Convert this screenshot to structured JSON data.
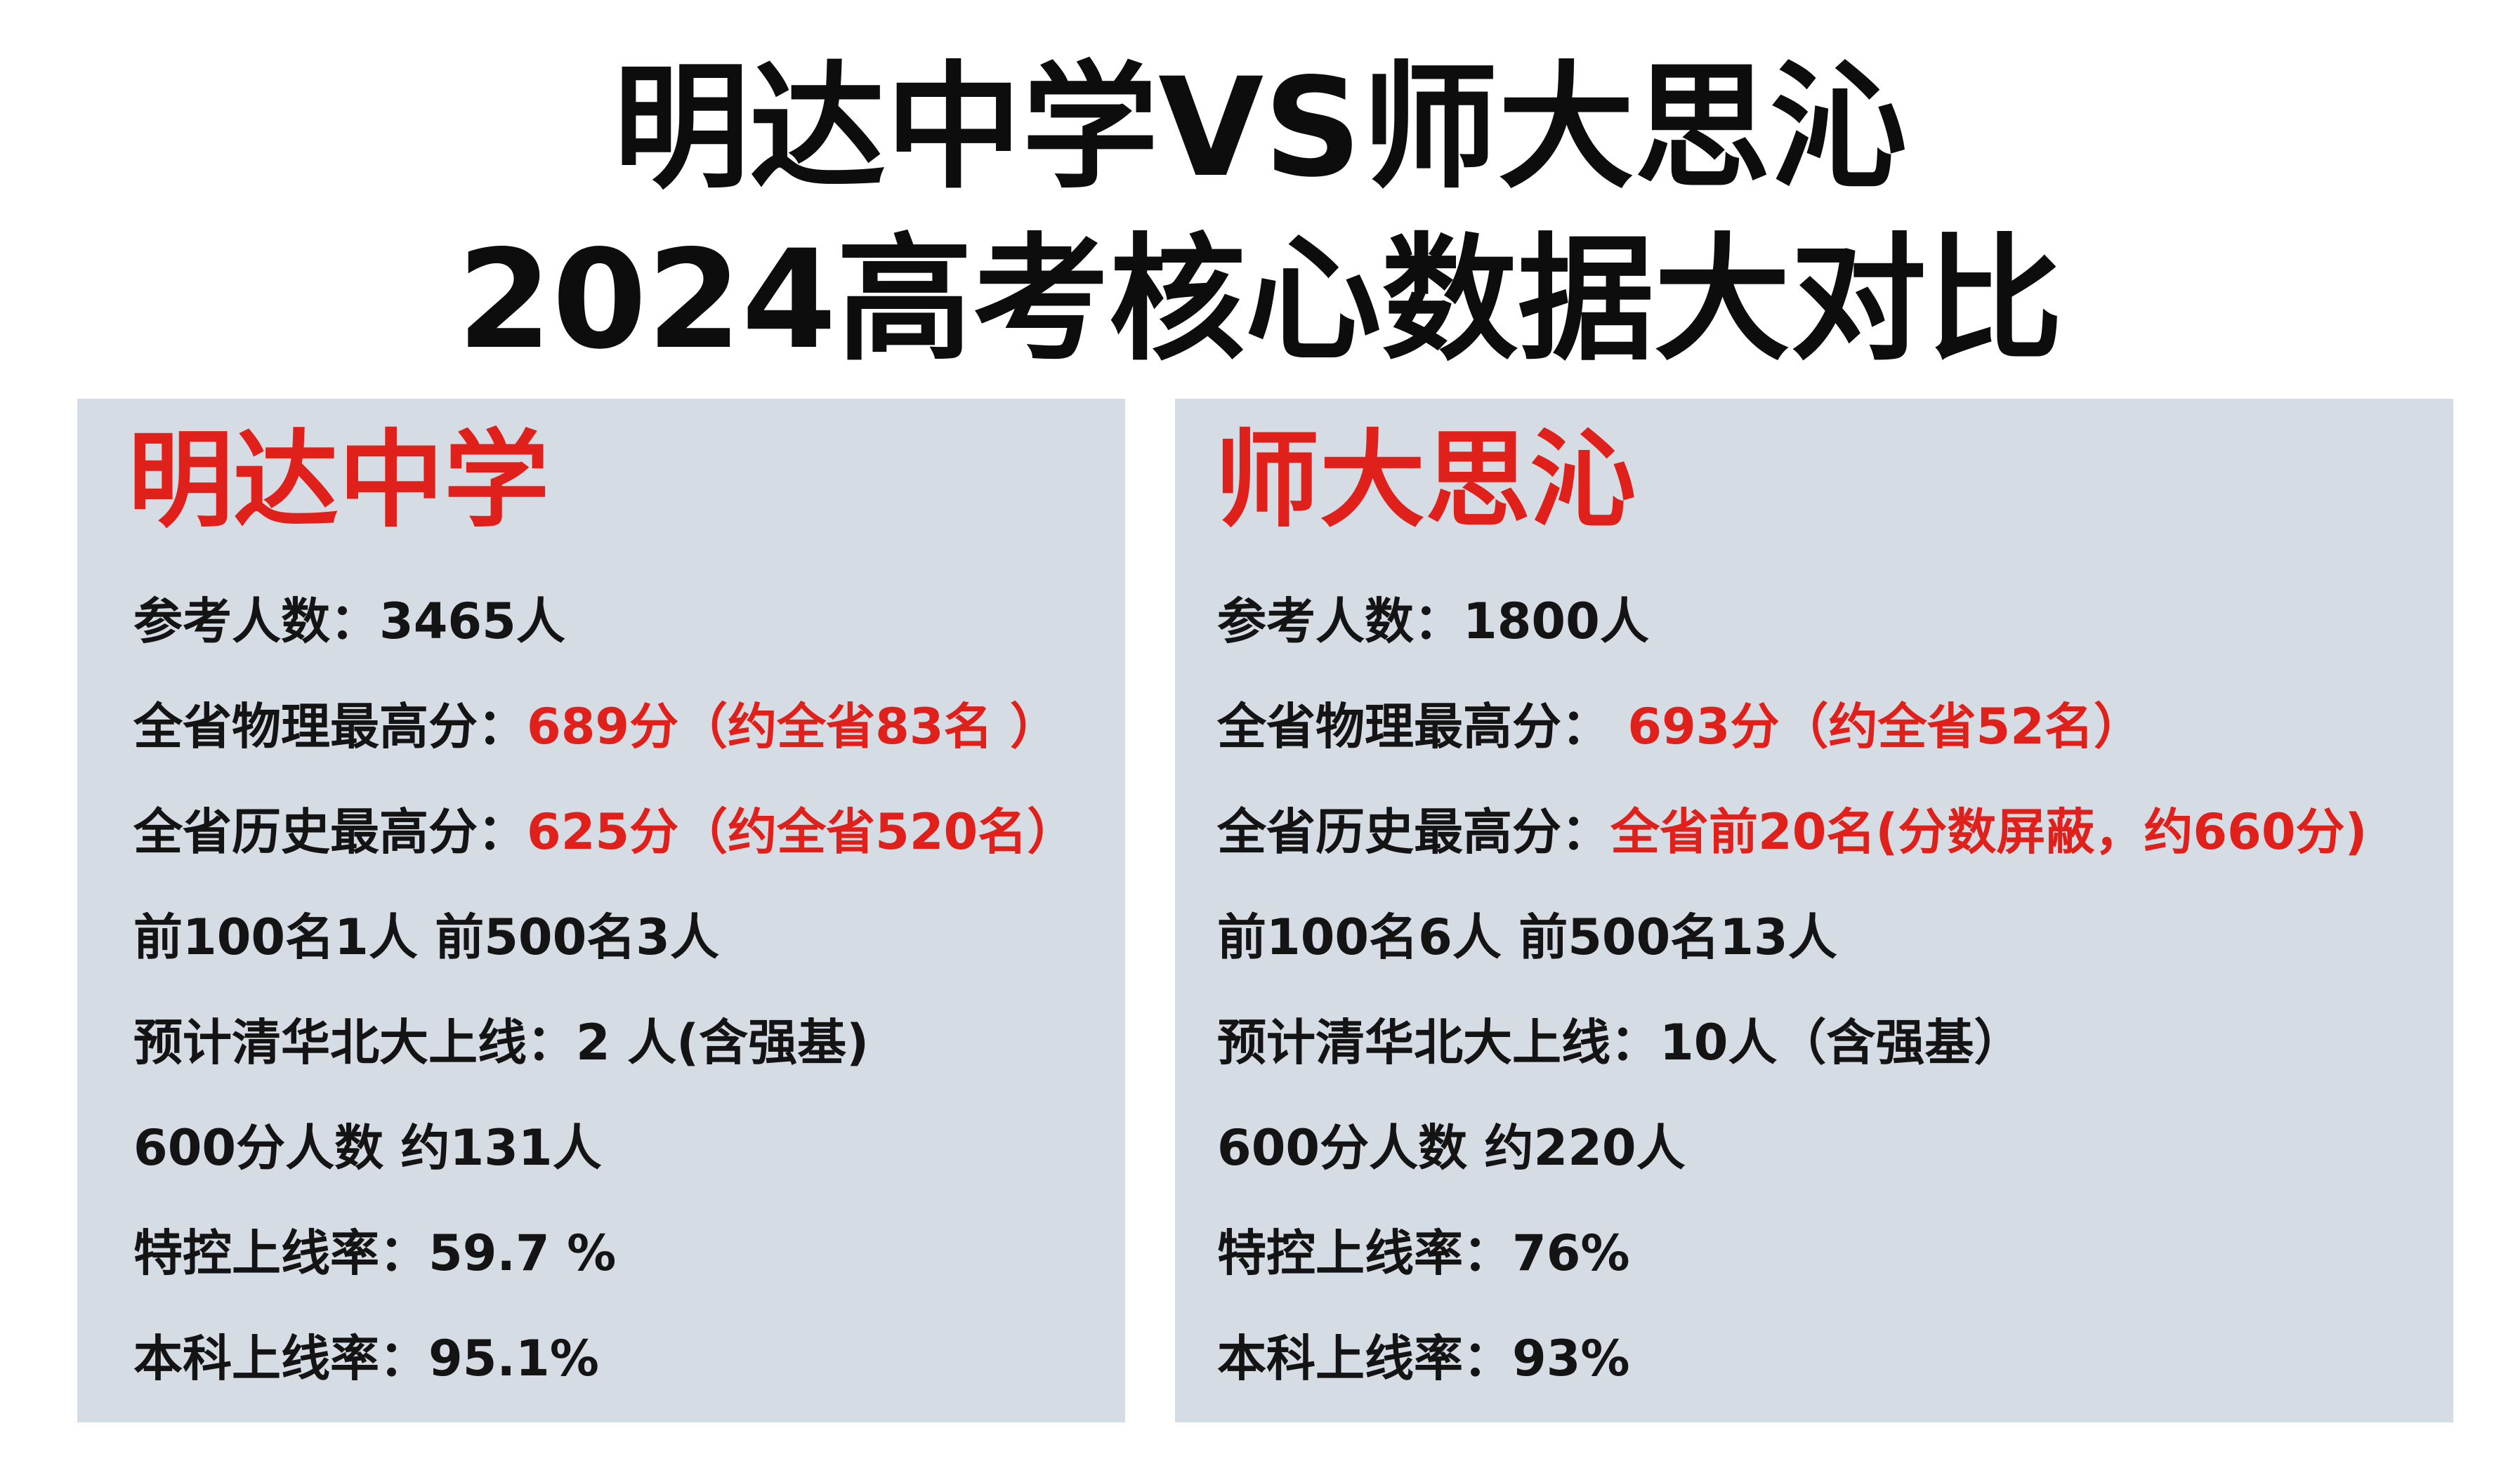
{
  "title": {
    "line1": "明达中学VS师大思沁",
    "line2": "2024高考核心数据大对比"
  },
  "colors": {
    "accent_red": "#e0201b",
    "panel_bg": "#d6dce4",
    "text": "#141414"
  },
  "left": {
    "name": "明达中学",
    "rows": [
      {
        "label": "参考人数：",
        "value": "3465人",
        "highlight": false
      },
      {
        "label": "全省物理最高分：",
        "value": "689分（约全省83名 ）",
        "highlight": true
      },
      {
        "label": "全省历史最高分：",
        "value": "625分（约全省520名）",
        "highlight": true
      },
      {
        "label": "",
        "value": "前100名1人 前500名3人",
        "highlight": false
      },
      {
        "label": "预计清华北大上线：",
        "value": "2 人(含强基)",
        "highlight": false
      },
      {
        "label": "",
        "value": "600分人数 约131人",
        "highlight": false
      },
      {
        "label": "特控上线率：",
        "value": "59.7 %",
        "highlight": false
      },
      {
        "label": "本科上线率：",
        "value": "95.1%",
        "highlight": false
      }
    ]
  },
  "right": {
    "name": "师大思沁",
    "rows": [
      {
        "label": "参考人数：",
        "value": "1800人",
        "highlight": false
      },
      {
        "label": "全省物理最高分：",
        "value": " 693分（约全省52名）",
        "highlight": true
      },
      {
        "label": "全省历史最高分：",
        "value": "全省前20名(分数屏蔽，约660分)",
        "highlight": true
      },
      {
        "label": "",
        "value": "前100名6人  前500名13人",
        "highlight": false
      },
      {
        "label": "预计清华北大上线：",
        "value": "10人（含强基）",
        "highlight": false
      },
      {
        "label": "",
        "value": "600分人数 约220人",
        "highlight": false
      },
      {
        "label": "特控上线率：",
        "value": "76%",
        "highlight": false
      },
      {
        "label": "本科上线率：",
        "value": "93%",
        "highlight": false
      }
    ]
  }
}
